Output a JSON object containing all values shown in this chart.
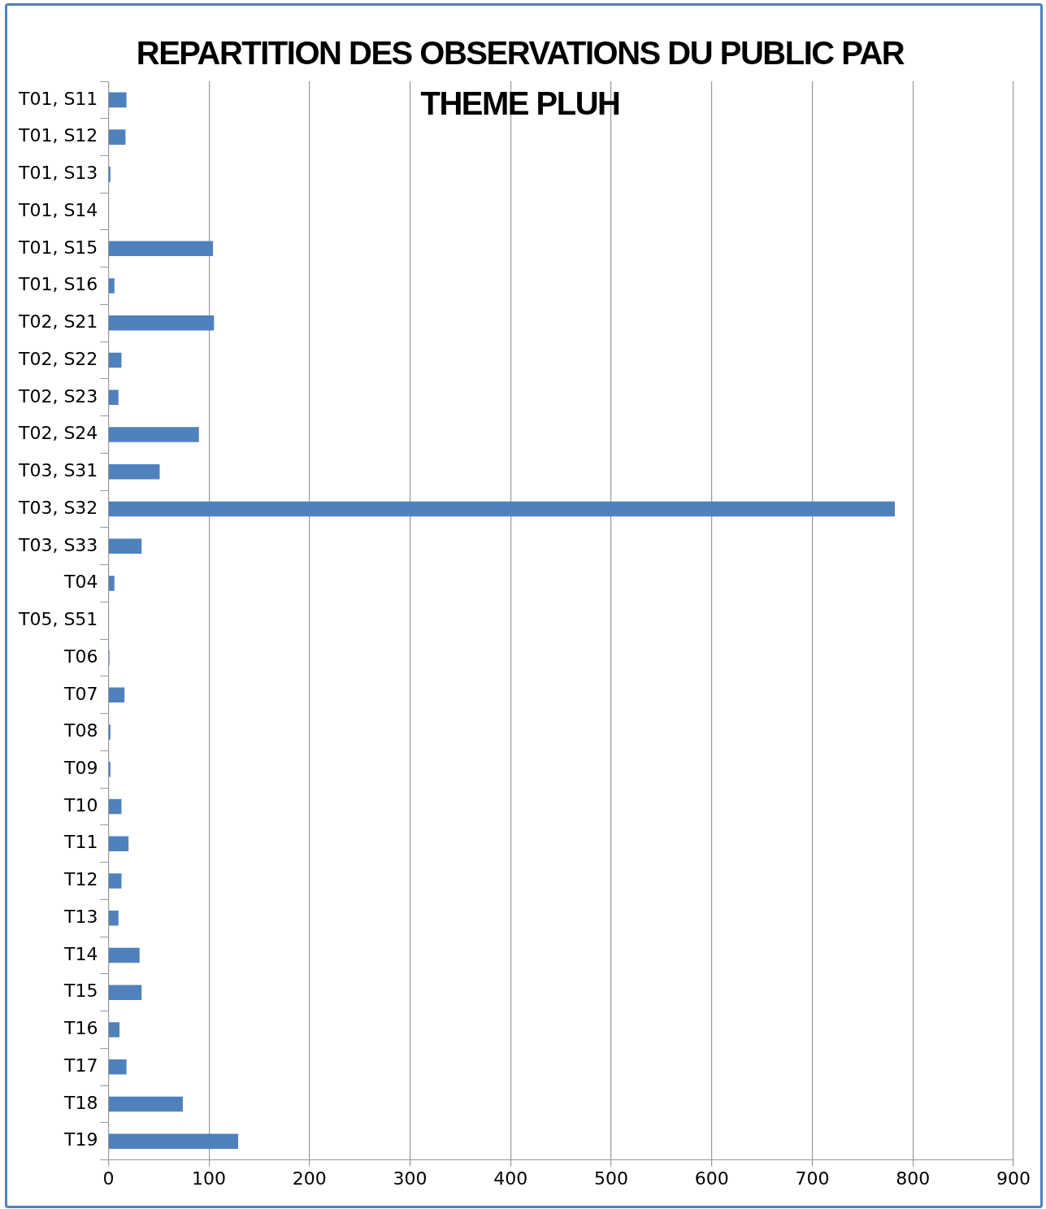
{
  "chart_data": {
    "type": "bar",
    "orientation": "horizontal",
    "title": "REPARTITION DES OBSERVATIONS DU PUBLIC PAR THEME PLUH",
    "categories": [
      "T01, S11",
      "T01, S12",
      "T01, S13",
      "T01, S14",
      "T01, S15",
      "T01, S16",
      "T02, S21",
      "T02, S22",
      "T02, S23",
      "T02, S24",
      "T03, S31",
      "T03, S32",
      "T03, S33",
      "T04",
      "T05, S51",
      "T06",
      "T07",
      "T08",
      "T09",
      "T10",
      "T11",
      "T12",
      "T13",
      "T14",
      "T15",
      "T16",
      "T17",
      "T18",
      "T19"
    ],
    "values": [
      18,
      17,
      2,
      0,
      104,
      6,
      105,
      13,
      10,
      90,
      51,
      782,
      33,
      6,
      0,
      1,
      16,
      2,
      2,
      13,
      20,
      13,
      10,
      31,
      33,
      11,
      18,
      74,
      129
    ],
    "color": "#4f81bd",
    "xlim": [
      0,
      900
    ],
    "xticks": [
      0,
      100,
      200,
      300,
      400,
      500,
      600,
      700,
      800,
      900
    ],
    "grid": "x"
  }
}
